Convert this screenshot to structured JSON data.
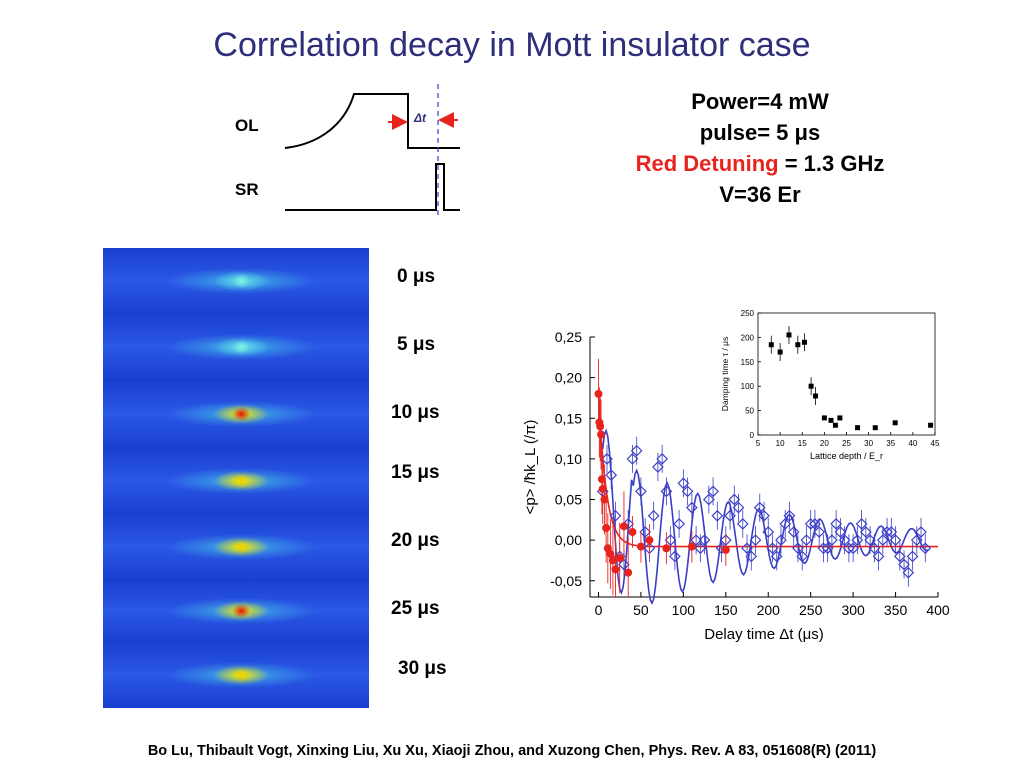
{
  "slide": {
    "title": "Correlation decay in Mott insulator case",
    "citation": "Bo Lu, Thibault Vogt, Xinxing Liu, Xu Xu, Xiaoji Zhou, and Xuzong Chen, Phys. Rev. A 83, 051608(R) (2011)"
  },
  "params": {
    "power": "Power=4 mW",
    "pulse_prefix": "pulse= 5 ",
    "pulse_unit": "μs",
    "detuning_label": "Red Detuning",
    "detuning_value": " = 1.3 GHz",
    "lattice_depth": "V=36 Er"
  },
  "pulse_diagram": {
    "ol_label": "OL",
    "sr_label": "SR",
    "dt_label": "Δt"
  },
  "frames": [
    {
      "label": "0 μs",
      "peak": 0.35
    },
    {
      "label": "5 μs",
      "peak": 0.45
    },
    {
      "label": "10 μs",
      "peak": 1.0
    },
    {
      "label": "15 μs",
      "peak": 0.75
    },
    {
      "label": "20 μs",
      "peak": 0.7
    },
    {
      "label": "25 μs",
      "peak": 0.85
    },
    {
      "label": "30 μs",
      "peak": 0.65
    }
  ],
  "colors": {
    "title": "#2e2f7a",
    "red_series": "#e8231e",
    "blue_series": "#3a3ec6"
  },
  "chart_data": [
    {
      "type": "scatter",
      "xlabel": "Delay time Δt  (μs)",
      "ylabel": "<p> /ħk_L (/π)",
      "xlim": [
        -10,
        400
      ],
      "ylim": [
        -0.07,
        0.25
      ],
      "xticks": [
        "0",
        "50",
        "100",
        "150",
        "200",
        "250",
        "300",
        "350",
        "400"
      ],
      "yticks": [
        "-0,05",
        "0,00",
        "0,05",
        "0,10",
        "0,15",
        "0,20",
        "0,25"
      ],
      "series": [
        {
          "marker": "filled-circle",
          "color": "#e8231e",
          "x": [
            0,
            1,
            2,
            3,
            4,
            5,
            7,
            9,
            11,
            14,
            17,
            20,
            25,
            30,
            35,
            40,
            50,
            60,
            80,
            110,
            150
          ],
          "y": [
            0.18,
            0.145,
            0.14,
            0.13,
            0.075,
            0.063,
            0.05,
            0.015,
            -0.01,
            -0.017,
            -0.025,
            -0.036,
            -0.022,
            0.017,
            -0.04,
            0.01,
            -0.008,
            0.0,
            -0.01,
            -0.008,
            -0.012
          ],
          "fit": "damped"
        },
        {
          "marker": "open-diamond",
          "color": "#3a3ec6",
          "x": [
            5,
            10,
            15,
            20,
            25,
            30,
            35,
            40,
            45,
            50,
            55,
            60,
            65,
            70,
            75,
            80,
            85,
            90,
            95,
            100,
            105,
            110,
            115,
            120,
            125,
            130,
            135,
            140,
            145,
            150,
            155,
            160,
            165,
            170,
            175,
            180,
            185,
            190,
            195,
            200,
            205,
            210,
            215,
            220,
            225,
            230,
            235,
            240,
            245,
            250,
            255,
            260,
            265,
            270,
            275,
            280,
            285,
            290,
            295,
            300,
            305,
            310,
            315,
            320,
            325,
            330,
            335,
            340,
            345,
            350,
            355,
            360,
            365,
            370,
            375,
            380,
            385
          ],
          "y": [
            0.06,
            0.1,
            0.08,
            0.03,
            -0.02,
            -0.03,
            0.02,
            0.1,
            0.11,
            0.06,
            0.01,
            -0.01,
            0.03,
            0.09,
            0.1,
            0.06,
            0.0,
            -0.02,
            0.02,
            0.07,
            0.06,
            0.04,
            0.0,
            -0.01,
            0.0,
            0.05,
            0.06,
            0.03,
            -0.01,
            0.0,
            0.03,
            0.05,
            0.04,
            0.02,
            -0.01,
            -0.02,
            0.0,
            0.04,
            0.03,
            0.01,
            -0.01,
            -0.02,
            0.0,
            0.02,
            0.03,
            0.01,
            -0.01,
            -0.02,
            0.0,
            0.02,
            0.02,
            0.01,
            -0.01,
            -0.01,
            0.0,
            0.02,
            0.01,
            0.0,
            -0.01,
            -0.01,
            0.0,
            0.02,
            0.01,
            0.0,
            -0.01,
            -0.02,
            0.0,
            0.01,
            0.01,
            0.0,
            -0.02,
            -0.03,
            -0.04,
            -0.02,
            0.0,
            0.01,
            -0.01
          ],
          "fit": "damped-oscillation"
        }
      ]
    },
    {
      "type": "scatter",
      "xlabel": "Lattice depth / E_r",
      "ylabel": "Damping time τ / μs",
      "xlim": [
        5,
        45
      ],
      "ylim": [
        0,
        250
      ],
      "xticks": [
        "5",
        "10",
        "15",
        "20",
        "25",
        "30",
        "35",
        "40",
        "45"
      ],
      "yticks": [
        "0",
        "50",
        "100",
        "150",
        "200",
        "250"
      ],
      "series": [
        {
          "marker": "filled-square",
          "color": "#000000",
          "x": [
            8,
            10,
            12,
            14,
            15.5,
            17,
            18,
            20,
            21.5,
            22.5,
            23.5,
            27.5,
            31.5,
            36,
            44
          ],
          "y": [
            185,
            170,
            205,
            185,
            190,
            100,
            80,
            35,
            30,
            20,
            35,
            15,
            15,
            25,
            20
          ]
        }
      ]
    }
  ]
}
